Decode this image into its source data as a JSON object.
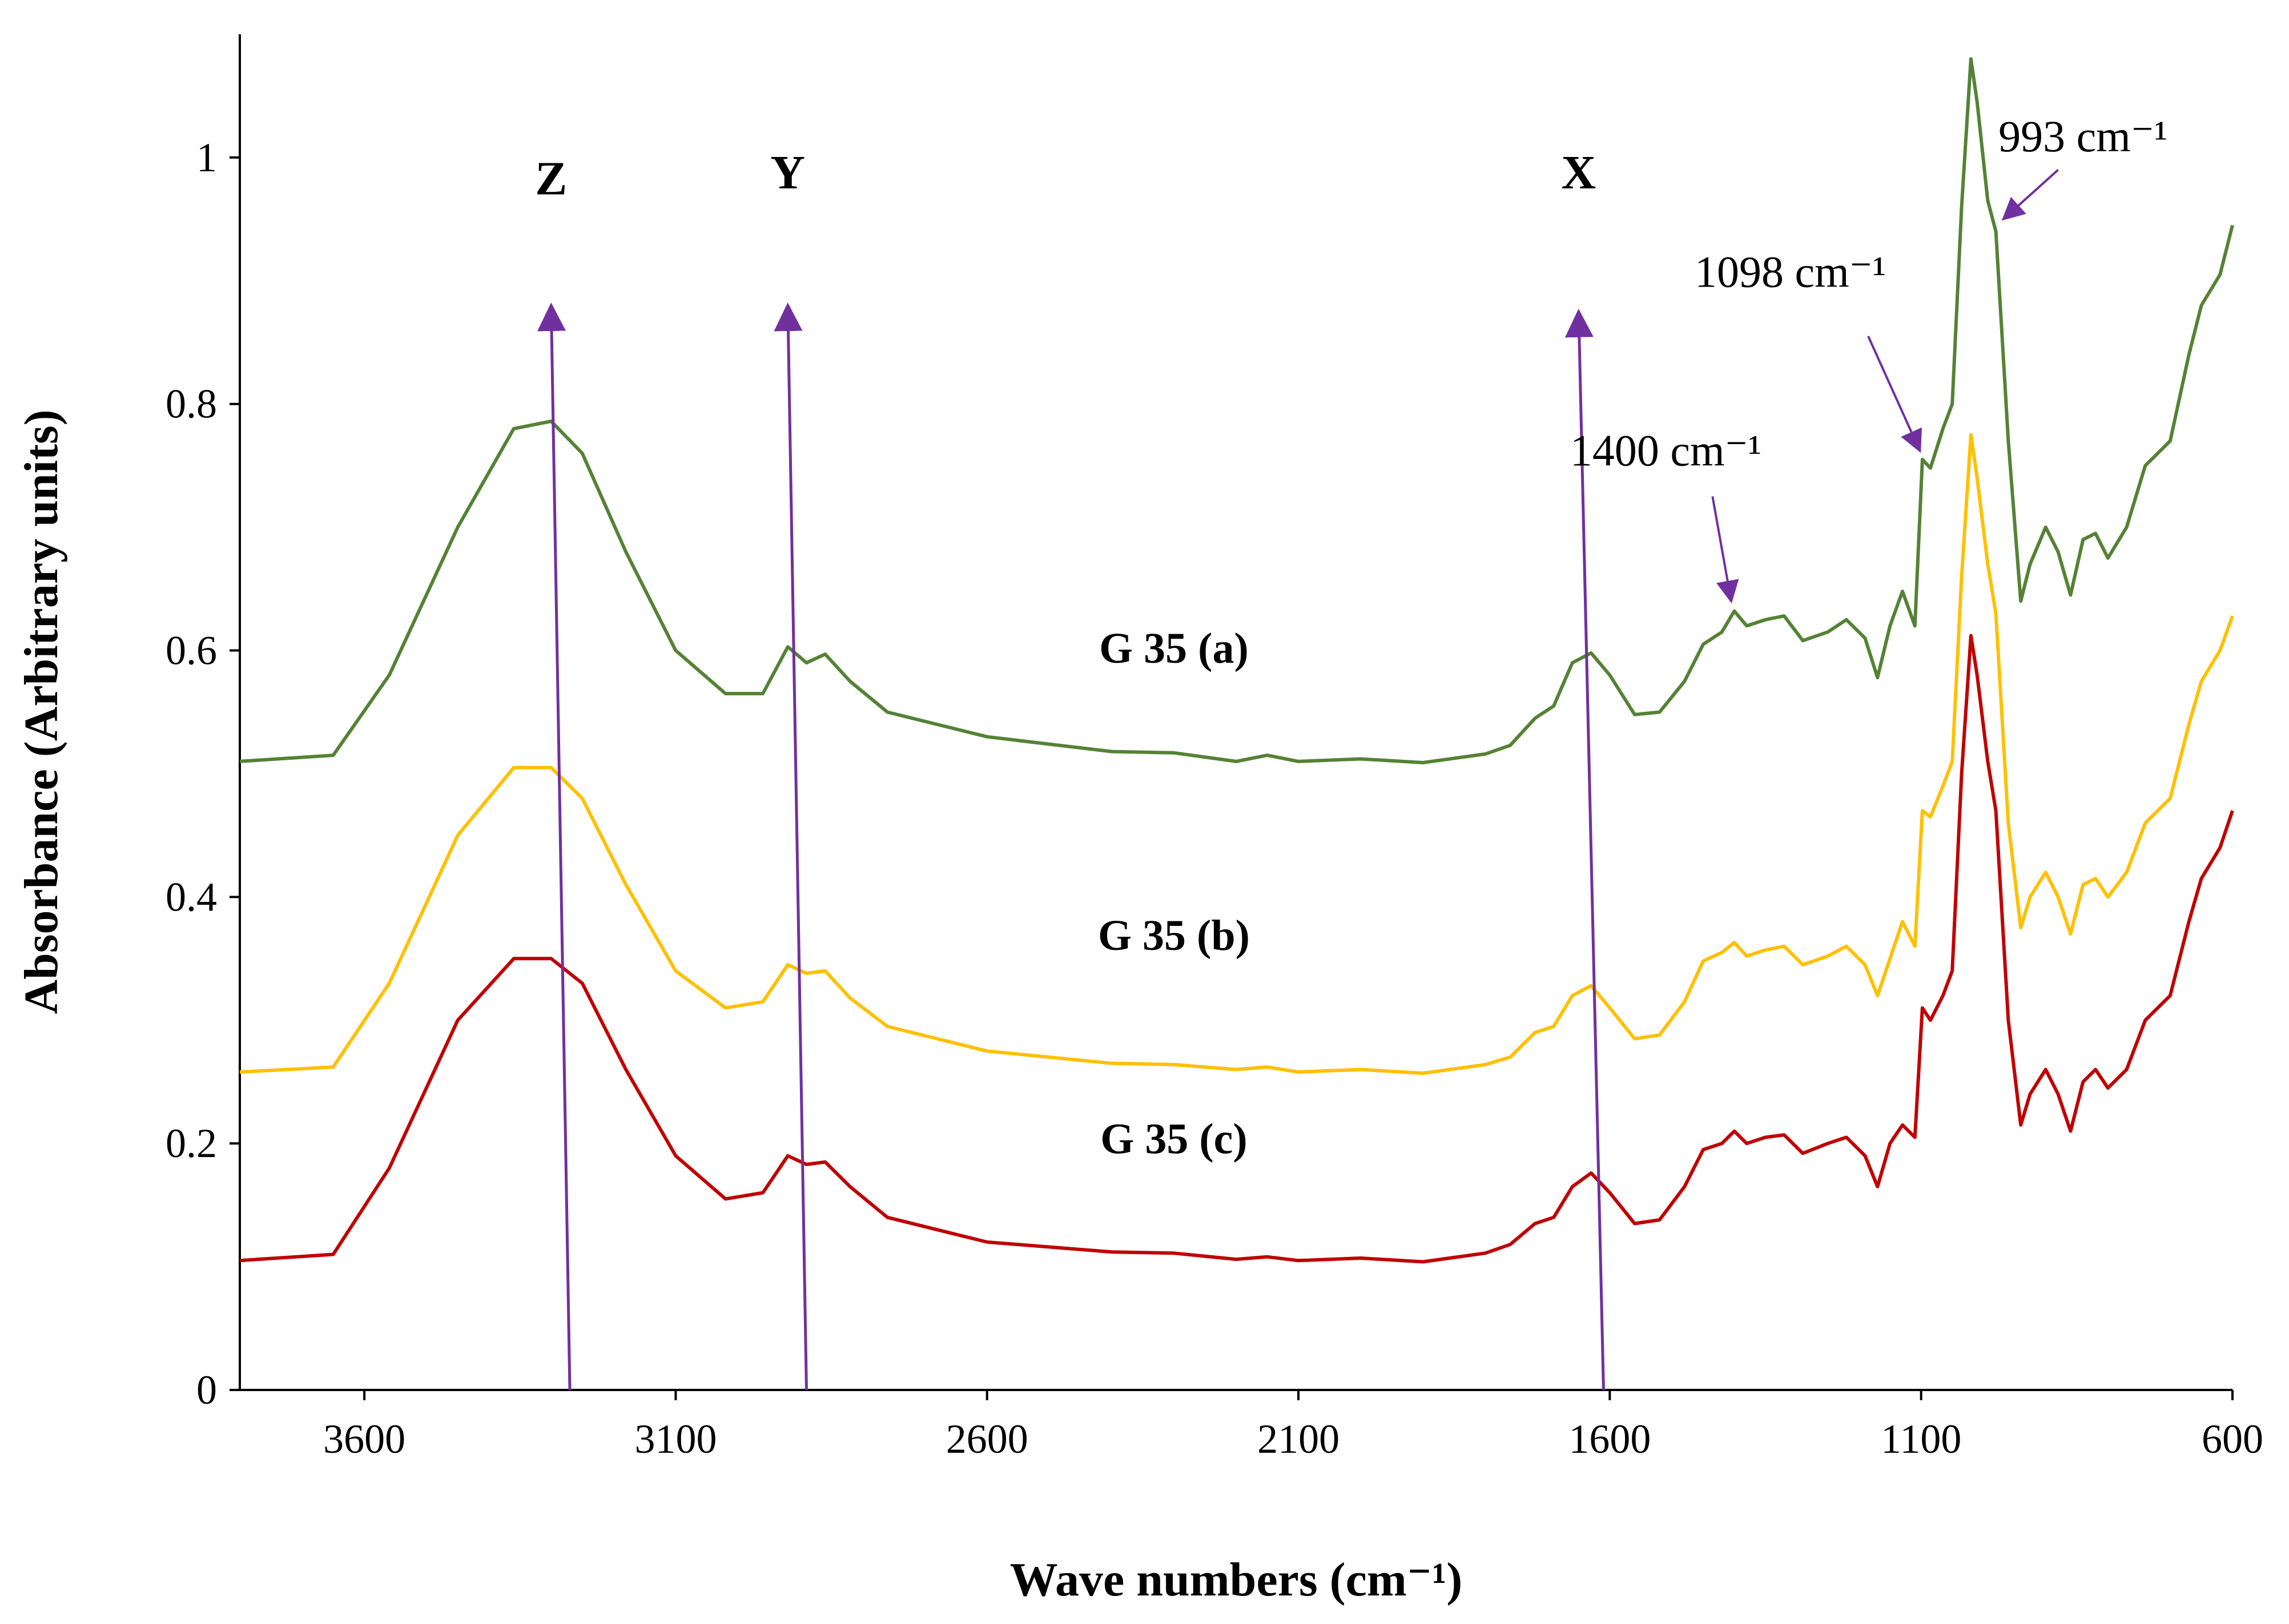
{
  "chart_data": {
    "type": "line",
    "title": "",
    "xlabel": "Wave numbers (cm⁻¹)",
    "ylabel": "Absorbance (Arbitrary units)",
    "xlim": [
      3800,
      600
    ],
    "ylim": [
      0,
      1.1
    ],
    "x_ticks": [
      {
        "value": 3600,
        "label": "3600"
      },
      {
        "value": 3100,
        "label": "3100"
      },
      {
        "value": 2600,
        "label": "2600"
      },
      {
        "value": 2100,
        "label": "2100"
      },
      {
        "value": 1600,
        "label": "1600"
      },
      {
        "value": 1100,
        "label": "1100"
      },
      {
        "value": 600,
        "label": "600"
      }
    ],
    "y_ticks": [
      {
        "value": 0,
        "label": "0"
      },
      {
        "value": 0.2,
        "label": "0.2"
      },
      {
        "value": 0.4,
        "label": "0.4"
      },
      {
        "value": 0.6,
        "label": "0.6"
      },
      {
        "value": 0.8,
        "label": "0.8"
      },
      {
        "value": 1,
        "label": "1"
      }
    ],
    "series": [
      {
        "name": "G 35 (a)",
        "label_x": 2300,
        "label_y": 0.59,
        "color": "#548235",
        "x": [
          3800,
          3650,
          3560,
          3450,
          3360,
          3300,
          3250,
          3180,
          3100,
          3020,
          2960,
          2920,
          2890,
          2860,
          2820,
          2760,
          2600,
          2400,
          2300,
          2200,
          2150,
          2100,
          2000,
          1900,
          1800,
          1760,
          1720,
          1690,
          1660,
          1630,
          1600,
          1560,
          1520,
          1480,
          1450,
          1420,
          1400,
          1380,
          1350,
          1320,
          1290,
          1250,
          1220,
          1190,
          1170,
          1150,
          1130,
          1110,
          1098,
          1085,
          1065,
          1050,
          1035,
          1020,
          1010,
          993,
          980,
          960,
          940,
          925,
          900,
          880,
          860,
          840,
          820,
          800,
          770,
          740,
          700,
          670,
          650,
          620,
          600
        ],
        "values": [
          0.51,
          0.515,
          0.58,
          0.7,
          0.78,
          0.786,
          0.76,
          0.68,
          0.6,
          0.565,
          0.565,
          0.603,
          0.59,
          0.597,
          0.575,
          0.55,
          0.53,
          0.518,
          0.517,
          0.51,
          0.515,
          0.51,
          0.512,
          0.509,
          0.516,
          0.523,
          0.545,
          0.555,
          0.59,
          0.598,
          0.58,
          0.548,
          0.55,
          0.575,
          0.605,
          0.615,
          0.632,
          0.62,
          0.625,
          0.628,
          0.608,
          0.615,
          0.625,
          0.61,
          0.578,
          0.62,
          0.648,
          0.62,
          0.755,
          0.748,
          0.78,
          0.8,
          0.96,
          1.08,
          1.045,
          0.965,
          0.94,
          0.77,
          0.64,
          0.67,
          0.7,
          0.68,
          0.645,
          0.69,
          0.695,
          0.675,
          0.7,
          0.75,
          0.77,
          0.84,
          0.88,
          0.905,
          0.945
        ]
      },
      {
        "name": "G 35 (b)",
        "label_x": 2300,
        "label_y": 0.357,
        "color": "#FFC000",
        "x": [
          3800,
          3650,
          3560,
          3450,
          3360,
          3300,
          3250,
          3180,
          3100,
          3020,
          2960,
          2920,
          2890,
          2860,
          2820,
          2760,
          2600,
          2400,
          2300,
          2200,
          2150,
          2100,
          2000,
          1900,
          1800,
          1760,
          1720,
          1690,
          1660,
          1630,
          1600,
          1560,
          1520,
          1480,
          1450,
          1420,
          1400,
          1380,
          1350,
          1320,
          1290,
          1250,
          1220,
          1190,
          1170,
          1150,
          1130,
          1110,
          1098,
          1085,
          1065,
          1050,
          1035,
          1020,
          1010,
          993,
          980,
          960,
          940,
          925,
          900,
          880,
          860,
          840,
          820,
          800,
          770,
          740,
          700,
          670,
          650,
          620,
          600
        ],
        "values": [
          0.258,
          0.262,
          0.33,
          0.45,
          0.505,
          0.505,
          0.48,
          0.41,
          0.34,
          0.31,
          0.315,
          0.345,
          0.338,
          0.34,
          0.318,
          0.295,
          0.275,
          0.265,
          0.264,
          0.26,
          0.262,
          0.258,
          0.26,
          0.257,
          0.264,
          0.27,
          0.29,
          0.295,
          0.32,
          0.328,
          0.31,
          0.285,
          0.288,
          0.315,
          0.348,
          0.355,
          0.363,
          0.352,
          0.357,
          0.36,
          0.345,
          0.352,
          0.36,
          0.345,
          0.32,
          0.35,
          0.38,
          0.36,
          0.47,
          0.465,
          0.49,
          0.51,
          0.66,
          0.775,
          0.74,
          0.67,
          0.63,
          0.46,
          0.375,
          0.4,
          0.42,
          0.4,
          0.37,
          0.41,
          0.415,
          0.4,
          0.42,
          0.46,
          0.48,
          0.54,
          0.575,
          0.6,
          0.628
        ]
      },
      {
        "name": "G 35 (c)",
        "label_x": 2300,
        "label_y": 0.192,
        "color": "#C00000",
        "x": [
          3800,
          3650,
          3560,
          3450,
          3360,
          3300,
          3250,
          3180,
          3100,
          3020,
          2960,
          2920,
          2890,
          2860,
          2820,
          2760,
          2600,
          2400,
          2300,
          2200,
          2150,
          2100,
          2000,
          1900,
          1800,
          1760,
          1720,
          1690,
          1660,
          1630,
          1600,
          1560,
          1520,
          1480,
          1450,
          1420,
          1400,
          1380,
          1350,
          1320,
          1290,
          1250,
          1220,
          1190,
          1170,
          1150,
          1130,
          1110,
          1098,
          1085,
          1065,
          1050,
          1035,
          1020,
          1010,
          993,
          980,
          960,
          940,
          925,
          900,
          880,
          860,
          840,
          820,
          800,
          770,
          740,
          700,
          670,
          650,
          620,
          600
        ],
        "values": [
          0.105,
          0.11,
          0.18,
          0.3,
          0.35,
          0.35,
          0.33,
          0.26,
          0.19,
          0.155,
          0.16,
          0.19,
          0.183,
          0.185,
          0.165,
          0.14,
          0.12,
          0.112,
          0.111,
          0.106,
          0.108,
          0.105,
          0.107,
          0.104,
          0.111,
          0.118,
          0.135,
          0.14,
          0.165,
          0.176,
          0.16,
          0.135,
          0.138,
          0.165,
          0.195,
          0.2,
          0.21,
          0.2,
          0.205,
          0.207,
          0.192,
          0.2,
          0.205,
          0.19,
          0.165,
          0.2,
          0.215,
          0.205,
          0.31,
          0.3,
          0.32,
          0.34,
          0.5,
          0.612,
          0.58,
          0.51,
          0.47,
          0.3,
          0.215,
          0.24,
          0.26,
          0.24,
          0.21,
          0.25,
          0.26,
          0.245,
          0.26,
          0.3,
          0.32,
          0.38,
          0.415,
          0.44,
          0.47
        ]
      }
    ],
    "band_markers": [
      {
        "label": "Z",
        "x_top": 3300,
        "x_bottom": 3270,
        "y_top": 0.88,
        "label_y": 0.97
      },
      {
        "label": "Y",
        "x_top": 2920,
        "x_bottom": 2890,
        "y_top": 0.88,
        "label_y": 0.975
      },
      {
        "label": "X",
        "x_top": 1650,
        "x_bottom": 1610,
        "y_top": 0.875,
        "label_y": 0.975
      }
    ],
    "annotations": [
      {
        "text": "1400 cm⁻¹",
        "text_x": 1510,
        "text_y": 0.75,
        "arrow_from": [
          1435,
          0.725
        ],
        "arrow_to": [
          1405,
          0.64
        ]
      },
      {
        "text": "1098 cm⁻¹",
        "text_x": 1310,
        "text_y": 0.895,
        "arrow_from": [
          1185,
          0.855
        ],
        "arrow_to": [
          1102,
          0.762
        ]
      },
      {
        "text": "993 cm⁻¹",
        "text_x": 840,
        "text_y": 1.005,
        "arrow_from": [
          880,
          0.99
        ],
        "arrow_to": [
          968,
          0.95
        ]
      }
    ],
    "marker_color": "#7030A0"
  }
}
